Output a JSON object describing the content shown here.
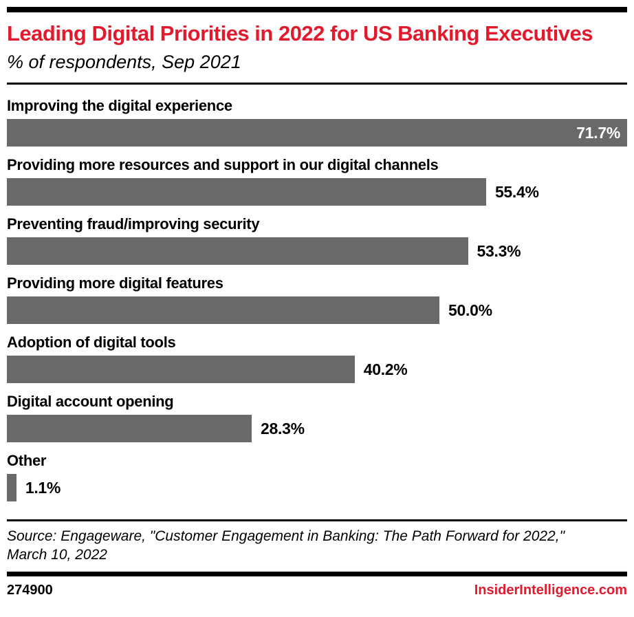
{
  "chart_data": {
    "type": "bar",
    "orientation": "horizontal",
    "title": "Leading Digital Priorities in 2022 for US Banking Executives",
    "subtitle": "% of respondents, Sep 2021",
    "unit": "%",
    "xlim": [
      0,
      71.7
    ],
    "grid": false,
    "legend": false,
    "value_labels_shown": true,
    "categories": [
      "Improving the digital experience",
      "Providing more resources and support in our digital channels",
      "Preventing fraud/improving security",
      "Providing more digital features",
      "Adoption of digital tools",
      "Digital account opening",
      "Other"
    ],
    "values": [
      71.7,
      55.4,
      53.3,
      50.0,
      40.2,
      28.3,
      1.1
    ],
    "value_labels": [
      "71.7%",
      "55.4%",
      "53.3%",
      "50.0%",
      "40.2%",
      "28.3%",
      "1.1%"
    ]
  },
  "footer": {
    "source_line1": "Source: Engageware, \"Customer Engagement in Banking: The Path Forward for 2022,\"",
    "source_line2": "March 10, 2022",
    "chart_id": "274900",
    "brand": "InsiderIntelligence.com"
  },
  "colors": {
    "accent_red": "#e11a2d",
    "bar_gray": "#696969",
    "rule_black": "#000000",
    "value_inside_text": "#ffffff"
  }
}
